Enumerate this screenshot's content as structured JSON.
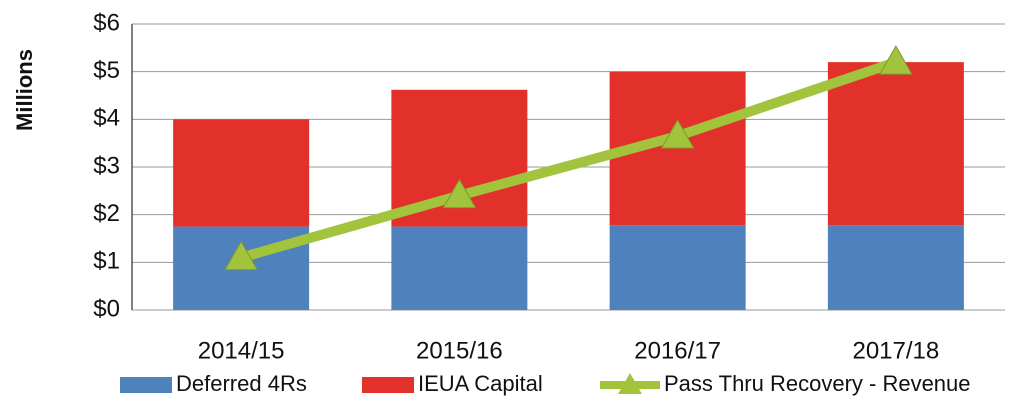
{
  "chart_data": {
    "type": "bar",
    "stacked": true,
    "y_label": "Millions",
    "categories": [
      "2014/15",
      "2015/16",
      "2016/17",
      "2017/18"
    ],
    "series": [
      {
        "name": "Deferred 4Rs",
        "type": "bar",
        "color": "#4f81bd",
        "values": [
          1.75,
          1.75,
          1.78,
          1.78
        ]
      },
      {
        "name": "IEUA Capital",
        "type": "bar",
        "color": "#e2302a",
        "values": [
          2.25,
          2.87,
          3.22,
          3.42
        ]
      },
      {
        "name": "Pass Thru Recovery - Revenue",
        "type": "line",
        "color": "#a2c43c",
        "values": [
          1.1,
          2.4,
          3.65,
          5.2
        ]
      }
    ],
    "ylim": [
      0,
      6
    ],
    "yticks": [
      {
        "value": 0,
        "label": "$0"
      },
      {
        "value": 1,
        "label": "$1"
      },
      {
        "value": 2,
        "label": "$2"
      },
      {
        "value": 3,
        "label": "$3"
      },
      {
        "value": 4,
        "label": "$4"
      },
      {
        "value": 5,
        "label": "$5"
      },
      {
        "value": 6,
        "label": "$6"
      }
    ],
    "grid": true,
    "legend": "bottom"
  }
}
